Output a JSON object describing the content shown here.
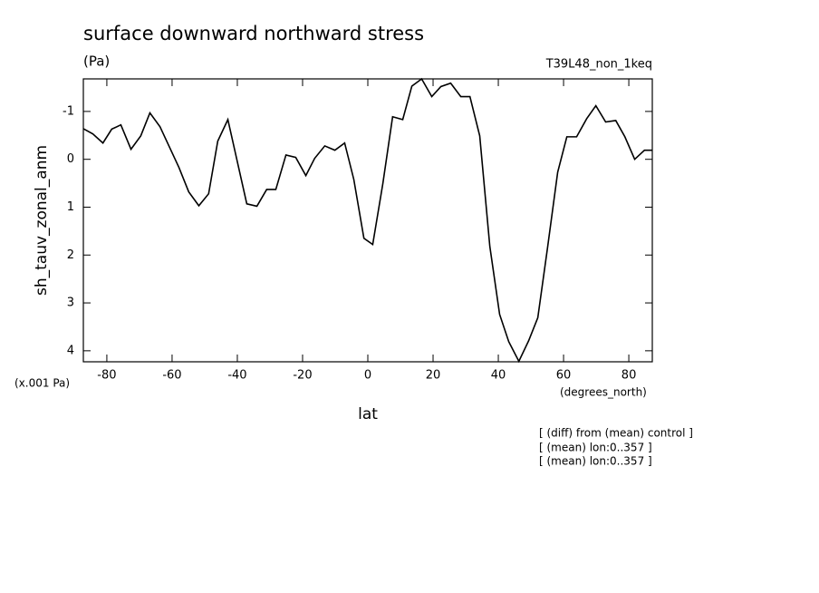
{
  "chart_data": {
    "type": "line",
    "title": "surface downward northward stress",
    "subtitle": "(Pa)",
    "run_label": "T39L48_non_1keq",
    "y_label": "sh_tauv_zonal_anm",
    "y_scale_label": "(x.001 Pa)",
    "x_units_label": "(degrees_north)",
    "x_label": "lat",
    "notes": [
      "[ (diff) from (mean) control ]",
      "[ (mean) lon:0..357 ]",
      "[ (mean) lon:0..357 ]"
    ],
    "xlim": [
      -87.2,
      87.2
    ],
    "xticks": [
      -80,
      -60,
      -40,
      -20,
      0,
      20,
      40,
      60,
      80
    ],
    "ylim": [
      -1.68,
      4.23
    ],
    "y_inverted": true,
    "yticks": [
      -1,
      0,
      1,
      2,
      3,
      4
    ],
    "color": "#000000",
    "x": [
      -87.2,
      -84.3,
      -81.2,
      -78.5,
      -75.7,
      -72.6,
      -69.6,
      -66.8,
      -63.7,
      -60.9,
      -57.9,
      -54.9,
      -51.8,
      -48.8,
      -46.0,
      -42.9,
      -39.9,
      -37.1,
      -34.0,
      -31.0,
      -28.2,
      -25.1,
      -22.1,
      -19.0,
      -16.3,
      -13.2,
      -10.1,
      -7.1,
      -4.3,
      -1.2,
      1.5,
      4.6,
      7.6,
      10.7,
      13.5,
      16.5,
      19.6,
      22.4,
      25.4,
      28.5,
      31.3,
      34.3,
      37.4,
      40.4,
      43.2,
      46.3,
      49.3,
      52.1,
      55.1,
      58.2,
      61.0,
      64.0,
      67.1,
      69.9,
      72.9,
      76.0,
      78.8,
      81.8,
      84.8,
      87.2
    ],
    "values": [
      -0.64,
      -0.53,
      -0.34,
      -0.63,
      -0.72,
      -0.21,
      -0.49,
      -0.97,
      -0.68,
      -0.27,
      0.17,
      0.68,
      0.97,
      0.72,
      -0.38,
      -0.83,
      0.08,
      0.93,
      0.98,
      0.63,
      0.63,
      -0.09,
      -0.04,
      0.34,
      -0.02,
      -0.28,
      -0.19,
      -0.34,
      0.42,
      1.65,
      1.78,
      0.51,
      -0.89,
      -0.83,
      -1.53,
      -1.68,
      -1.31,
      -1.52,
      -1.59,
      -1.31,
      -1.31,
      -0.49,
      1.82,
      3.24,
      3.81,
      4.22,
      3.79,
      3.31,
      1.84,
      0.27,
      -0.47,
      -0.47,
      -0.85,
      -1.12,
      -0.78,
      -0.81,
      -0.47,
      0.0,
      -0.19,
      -0.19
    ]
  }
}
